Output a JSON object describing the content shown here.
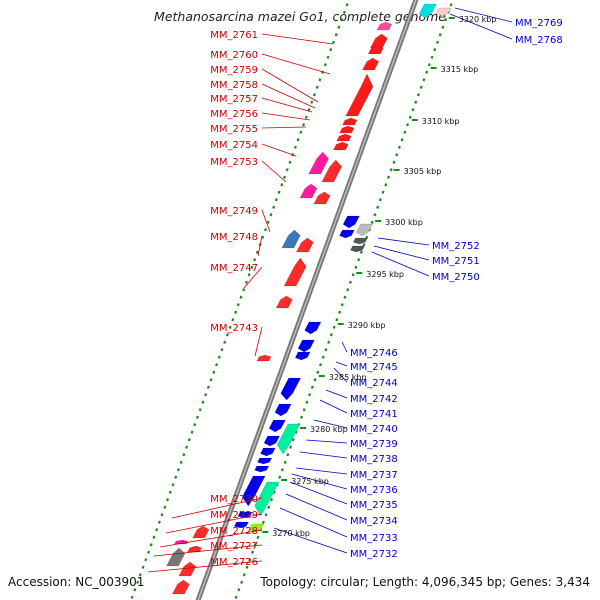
{
  "title": "Methanosarcina mazei Go1, complete genome",
  "accession": "Accession: NC_003901",
  "topology": "Topology: circular; Length: 4,096,345 bp; Genes: 3,434",
  "colors": {
    "forward_label": "#cc0000",
    "reverse_label": "#0000cc",
    "axis": "#888888",
    "tick": "#1a8a1a"
  },
  "scale_ticks": [
    "3320 kbp",
    "3315 kbp",
    "3310 kbp",
    "3305 kbp",
    "3300 kbp",
    "3295 kbp",
    "3290 kbp",
    "3285 kbp",
    "3280 kbp",
    "3275 kbp",
    "3270 kbp"
  ],
  "left_labels": [
    "MM_2761",
    "MM_2760",
    "MM_2759",
    "MM_2758",
    "MM_2757",
    "MM_2756",
    "MM_2755",
    "MM_2754",
    "MM_2753",
    "MM_2749",
    "MM_2748",
    "MM_2747",
    "MM_2743",
    "MM_2730",
    "MM_2729",
    "MM_2728",
    "MM_2727",
    "MM_2726"
  ],
  "right_labels": [
    "MM_2769",
    "MM_2768",
    "MM_2752",
    "MM_2751",
    "MM_2750",
    "MM_2746",
    "MM_2745",
    "MM_2744",
    "MM_2742",
    "MM_2741",
    "MM_2740",
    "MM_2739",
    "MM_2738",
    "MM_2737",
    "MM_2736",
    "MM_2735",
    "MM_2734",
    "MM_2733",
    "MM_2732"
  ]
}
